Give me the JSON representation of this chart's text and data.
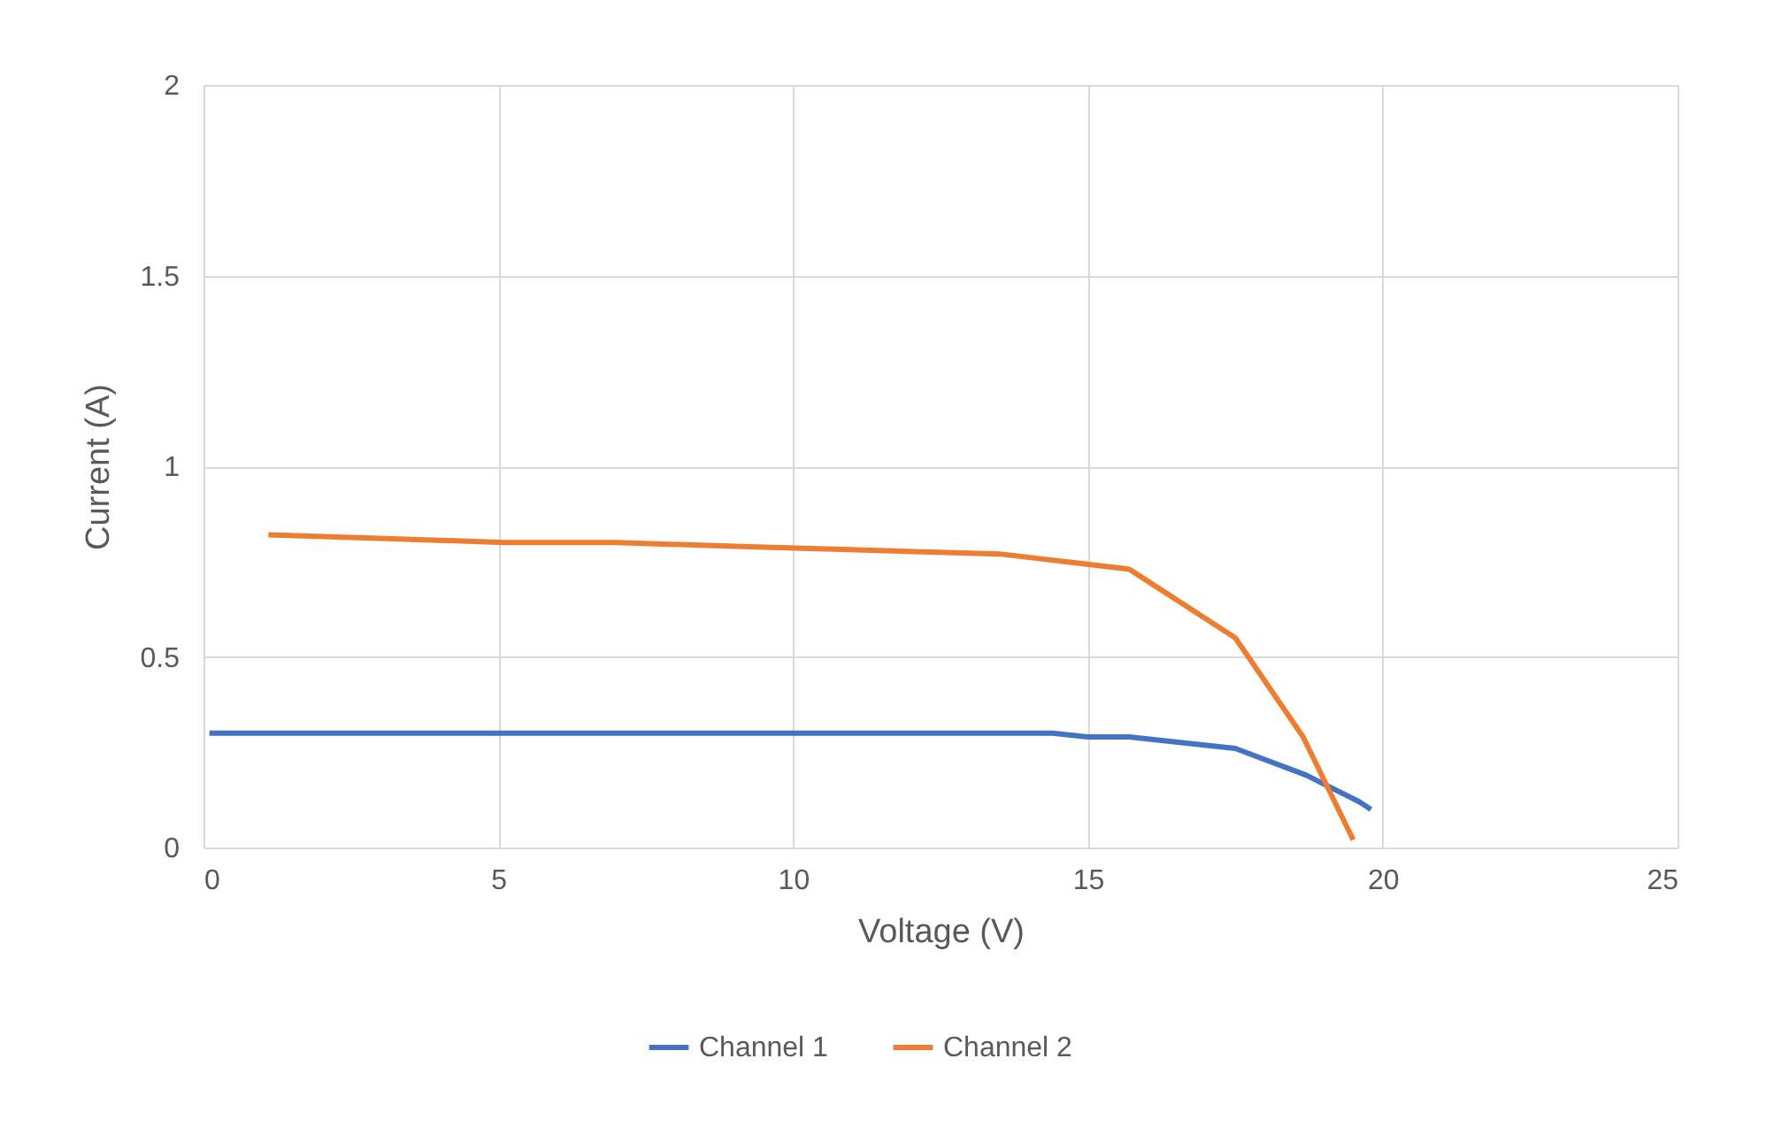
{
  "chart_data": {
    "type": "line",
    "xlabel": "Voltage (V)",
    "ylabel": "Current (A)",
    "xlim": [
      0,
      25
    ],
    "xticks": [
      0,
      5,
      10,
      15,
      20,
      25
    ],
    "ylim": [
      0,
      2
    ],
    "yticks": [
      0,
      0.5,
      1,
      1.5,
      2
    ],
    "grid": true,
    "legend": "bottom",
    "marker": "none",
    "line_style": "solid",
    "series": [
      {
        "name": "Channel 1",
        "color": "#4472c4",
        "x": [
          0.1,
          5,
          10,
          14.4,
          15,
          15.7,
          17.5,
          18.7,
          19.6,
          19.7,
          19.8
        ],
        "values": [
          0.3,
          0.3,
          0.3,
          0.3,
          0.29,
          0.29,
          0.26,
          0.19,
          0.12,
          0.11,
          0.1
        ]
      },
      {
        "name": "Channel 2",
        "color": "#ed7d31",
        "x": [
          1.1,
          3.2,
          5.1,
          7,
          9,
          11.2,
          13.5,
          15.7,
          17.5,
          18.65,
          19.5
        ],
        "values": [
          0.82,
          0.81,
          0.8,
          0.8,
          0.79,
          0.78,
          0.77,
          0.73,
          0.55,
          0.29,
          0.02
        ]
      }
    ]
  }
}
